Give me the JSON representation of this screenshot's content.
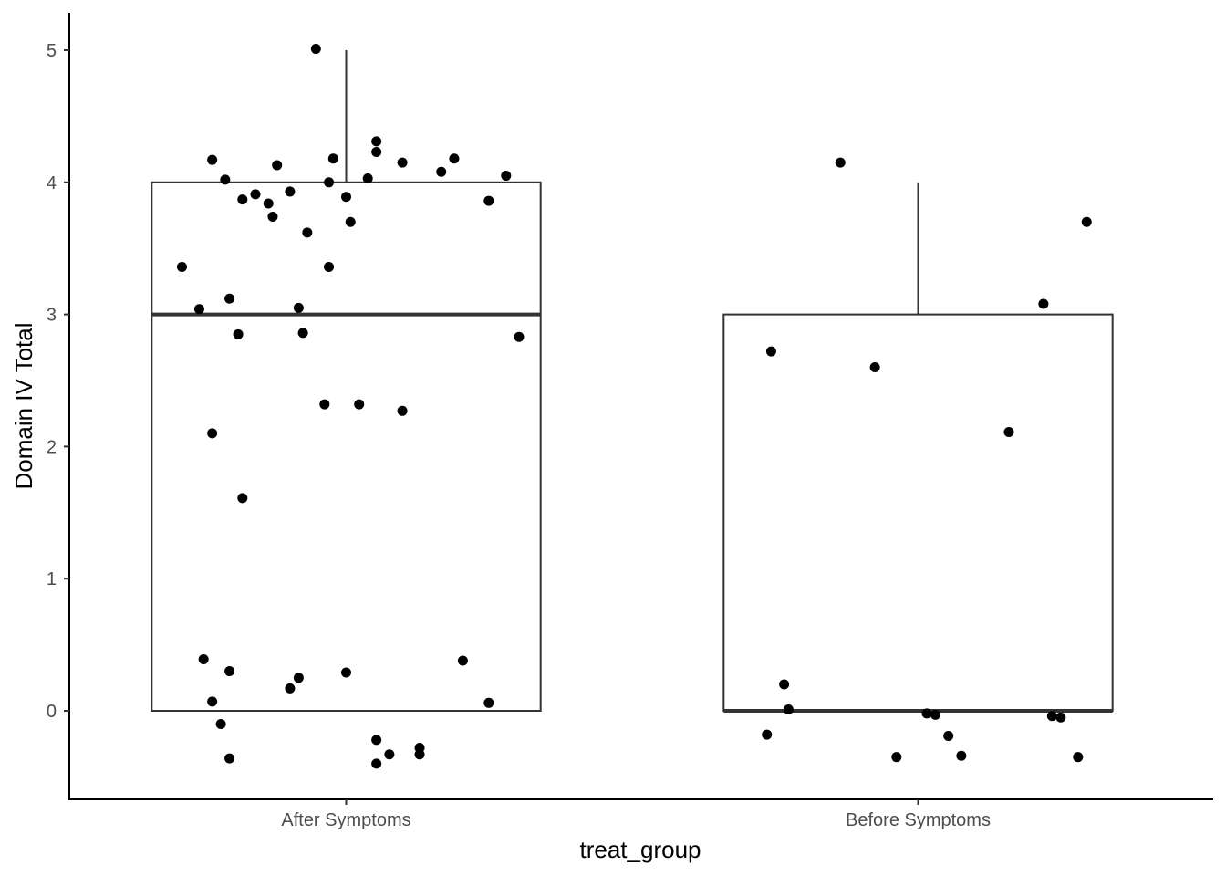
{
  "chart_data": {
    "type": "boxplot",
    "title": "",
    "xlabel": "treat_group",
    "ylabel": "Domain IV Total",
    "categories": [
      "After Symptoms",
      "Before Symptoms"
    ],
    "ylim": [
      -0.66,
      5.3
    ],
    "yticks": [
      0,
      1,
      2,
      3,
      4,
      5
    ],
    "grid": false,
    "legend": "none",
    "colors": {
      "box_line": "#333333",
      "point": "#000000",
      "axis": "#000000",
      "background": "#ffffff"
    },
    "boxes": [
      {
        "category": "After Symptoms",
        "q1": 0,
        "median": 3,
        "q3": 4,
        "whisker_low": 0,
        "whisker_high": 5
      },
      {
        "category": "Before Symptoms",
        "q1": 0,
        "median": 0,
        "q3": 3,
        "whisker_low": 0,
        "whisker_high": 4
      }
    ],
    "points": [
      {
        "category": "After Symptoms",
        "values": [
          {
            "j": -0.07,
            "y": 5.01
          },
          {
            "j": 0.07,
            "y": 4.31
          },
          {
            "j": 0.07,
            "y": 4.23
          },
          {
            "j": -0.03,
            "y": 4.18
          },
          {
            "j": -0.31,
            "y": 4.17
          },
          {
            "j": 0.25,
            "y": 4.18
          },
          {
            "j": 0.13,
            "y": 4.15
          },
          {
            "j": -0.16,
            "y": 4.13
          },
          {
            "j": 0.22,
            "y": 4.08
          },
          {
            "j": 0.37,
            "y": 4.05
          },
          {
            "j": 0.05,
            "y": 4.03
          },
          {
            "j": -0.28,
            "y": 4.02
          },
          {
            "j": -0.04,
            "y": 4.0
          },
          {
            "j": -0.13,
            "y": 3.93
          },
          {
            "j": -0.21,
            "y": 3.91
          },
          {
            "j": 0.0,
            "y": 3.89
          },
          {
            "j": -0.24,
            "y": 3.87
          },
          {
            "j": -0.18,
            "y": 3.84
          },
          {
            "j": 0.33,
            "y": 3.86
          },
          {
            "j": -0.17,
            "y": 3.74
          },
          {
            "j": 0.01,
            "y": 3.7
          },
          {
            "j": -0.09,
            "y": 3.62
          },
          {
            "j": -0.38,
            "y": 3.36
          },
          {
            "j": -0.04,
            "y": 3.36
          },
          {
            "j": -0.27,
            "y": 3.12
          },
          {
            "j": -0.11,
            "y": 3.05
          },
          {
            "j": -0.34,
            "y": 3.04
          },
          {
            "j": -0.25,
            "y": 2.85
          },
          {
            "j": -0.1,
            "y": 2.86
          },
          {
            "j": 0.4,
            "y": 2.83
          },
          {
            "j": -0.05,
            "y": 2.32
          },
          {
            "j": 0.03,
            "y": 2.32
          },
          {
            "j": 0.13,
            "y": 2.27
          },
          {
            "j": -0.31,
            "y": 2.1
          },
          {
            "j": -0.24,
            "y": 1.61
          },
          {
            "j": -0.33,
            "y": 0.39
          },
          {
            "j": 0.27,
            "y": 0.38
          },
          {
            "j": -0.27,
            "y": 0.3
          },
          {
            "j": 0.0,
            "y": 0.29
          },
          {
            "j": -0.11,
            "y": 0.25
          },
          {
            "j": -0.13,
            "y": 0.17
          },
          {
            "j": -0.31,
            "y": 0.07
          },
          {
            "j": 0.33,
            "y": 0.06
          },
          {
            "j": -0.29,
            "y": -0.1
          },
          {
            "j": 0.07,
            "y": -0.22
          },
          {
            "j": 0.17,
            "y": -0.28
          },
          {
            "j": 0.1,
            "y": -0.33
          },
          {
            "j": 0.17,
            "y": -0.33
          },
          {
            "j": -0.27,
            "y": -0.36
          },
          {
            "j": 0.07,
            "y": -0.4
          }
        ]
      },
      {
        "category": "Before Symptoms",
        "values": [
          {
            "j": -0.18,
            "y": 4.15
          },
          {
            "j": 0.39,
            "y": 3.7
          },
          {
            "j": 0.29,
            "y": 3.08
          },
          {
            "j": -0.34,
            "y": 2.72
          },
          {
            "j": -0.1,
            "y": 2.6
          },
          {
            "j": 0.21,
            "y": 2.11
          },
          {
            "j": -0.31,
            "y": 0.2
          },
          {
            "j": -0.3,
            "y": 0.01
          },
          {
            "j": 0.02,
            "y": -0.02
          },
          {
            "j": 0.04,
            "y": -0.03
          },
          {
            "j": 0.31,
            "y": -0.04
          },
          {
            "j": 0.33,
            "y": -0.05
          },
          {
            "j": -0.35,
            "y": -0.18
          },
          {
            "j": 0.07,
            "y": -0.19
          },
          {
            "j": -0.05,
            "y": -0.35
          },
          {
            "j": 0.1,
            "y": -0.34
          },
          {
            "j": 0.37,
            "y": -0.35
          }
        ]
      }
    ]
  }
}
